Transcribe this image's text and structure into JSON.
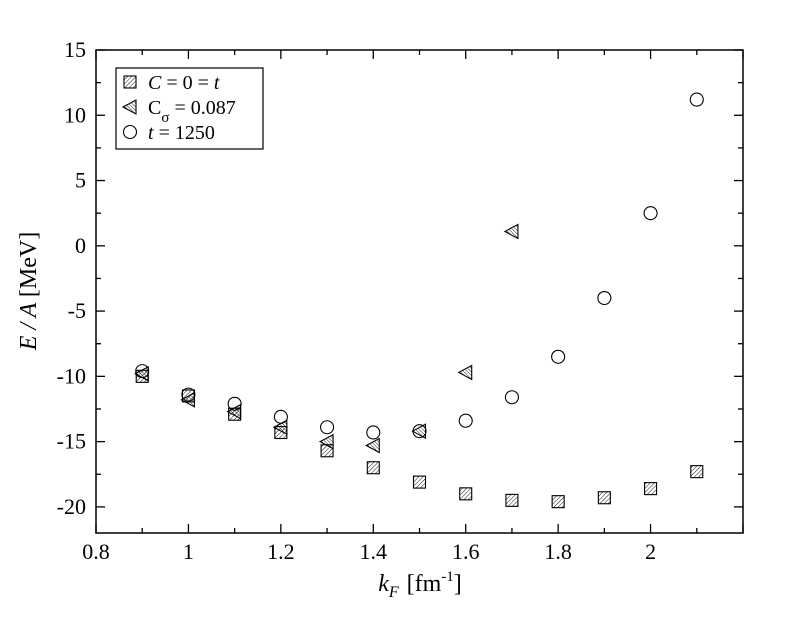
{
  "chart_data": {
    "type": "scatter",
    "xlabel": {
      "main": "k",
      "sub": "F",
      "unit_pre": "[fm",
      "unit_sup": "-1",
      "unit_post": "]"
    },
    "ylabel": "E / A  [MeV]",
    "xlim": [
      0.8,
      2.2
    ],
    "ylim": [
      -22,
      15
    ],
    "x_ticks": [
      0.8,
      1,
      1.2,
      1.4,
      1.6,
      1.8,
      2
    ],
    "x_tick_labels": [
      "0.8",
      "1",
      "1.2",
      "1.4",
      "1.6",
      "1.8",
      "2"
    ],
    "y_ticks": [
      -20,
      -15,
      -10,
      -5,
      0,
      5,
      10,
      15
    ],
    "y_tick_labels": [
      "-20",
      "-15",
      "-10",
      "-5",
      "0",
      "5",
      "10",
      "15"
    ],
    "grid": false,
    "legend_position": "top-left",
    "series": [
      {
        "name": "C = 0 = t",
        "legend": {
          "parts": [
            "C",
            " = 0 = ",
            "t"
          ],
          "italic": [
            true,
            false,
            true
          ]
        },
        "marker": "square-hatched",
        "x": [
          0.9,
          1.0,
          1.1,
          1.2,
          1.3,
          1.4,
          1.5,
          1.6,
          1.7,
          1.8,
          1.9,
          2.0,
          2.1
        ],
        "y": [
          -10.0,
          -11.5,
          -12.9,
          -14.3,
          -15.7,
          -17.0,
          -18.1,
          -19.0,
          -19.5,
          -19.6,
          -19.3,
          -18.6,
          -17.3
        ]
      },
      {
        "name": "Cσ = 0.087",
        "legend": {
          "parts": [
            "C",
            "σ",
            " = 0.087"
          ],
          "italic": [
            false,
            false,
            false
          ]
        },
        "marker": "triangle-left-hatched",
        "x": [
          0.9,
          1.0,
          1.1,
          1.2,
          1.3,
          1.4,
          1.5,
          1.6,
          1.7
        ],
        "y": [
          -9.8,
          -11.8,
          -12.7,
          -13.9,
          -15.0,
          -15.3,
          -14.2,
          -9.7,
          1.1
        ]
      },
      {
        "name": "t = 1250",
        "legend": {
          "parts": [
            "t",
            " = 1250"
          ],
          "italic": [
            true,
            false
          ]
        },
        "marker": "circle-open",
        "x": [
          0.9,
          1.0,
          1.1,
          1.2,
          1.3,
          1.4,
          1.5,
          1.6,
          1.7,
          1.8,
          1.9,
          2.0,
          2.1
        ],
        "y": [
          -9.6,
          -11.4,
          -12.1,
          -13.1,
          -13.9,
          -14.3,
          -14.2,
          -13.4,
          -11.6,
          -8.5,
          -4.0,
          2.5,
          11.2
        ]
      }
    ]
  }
}
